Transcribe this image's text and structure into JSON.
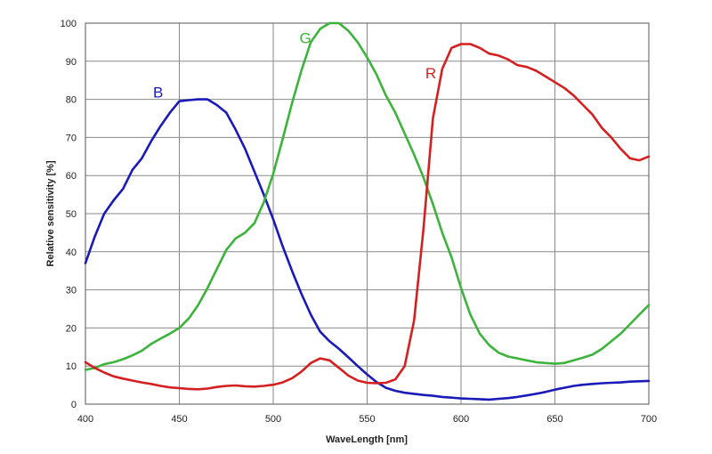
{
  "chart_data": {
    "type": "line",
    "xlabel": "WaveLength [nm]",
    "ylabel": "Relative sensitivity [%]",
    "xlim": [
      400,
      700
    ],
    "ylim": [
      0,
      100
    ],
    "x_ticks": [
      "400",
      "450",
      "500",
      "550",
      "600",
      "650",
      "700"
    ],
    "y_ticks": [
      "0",
      "10",
      "20",
      "30",
      "40",
      "50",
      "60",
      "70",
      "80",
      "90",
      "100"
    ],
    "grid": true,
    "legend": "none",
    "series": [
      {
        "name": "B",
        "color": "#1a1ab8",
        "x": [
          400,
          405,
          410,
          415,
          420,
          425,
          430,
          435,
          440,
          445,
          450,
          455,
          460,
          465,
          470,
          475,
          480,
          485,
          490,
          495,
          500,
          505,
          510,
          515,
          520,
          525,
          530,
          535,
          540,
          545,
          550,
          555,
          560,
          565,
          570,
          575,
          580,
          585,
          590,
          595,
          600,
          605,
          610,
          615,
          620,
          625,
          630,
          635,
          640,
          645,
          650,
          655,
          660,
          665,
          670,
          675,
          680,
          685,
          690,
          695,
          700
        ],
        "y": [
          37,
          44,
          50,
          53.5,
          56.5,
          61.5,
          64.5,
          69,
          73,
          76.5,
          79.5,
          79.8,
          80,
          80,
          78.5,
          76.5,
          72,
          67,
          61,
          55,
          48.5,
          41.5,
          35,
          29,
          23.5,
          19,
          16.5,
          14.5,
          12.3,
          10,
          7.8,
          5.8,
          4.3,
          3.5,
          3,
          2.7,
          2.4,
          2.2,
          1.9,
          1.7,
          1.5,
          1.4,
          1.3,
          1.2,
          1.4,
          1.6,
          1.9,
          2.3,
          2.7,
          3.2,
          3.8,
          4.3,
          4.8,
          5.1,
          5.3,
          5.5,
          5.6,
          5.7,
          5.9,
          6.0,
          6.1
        ]
      },
      {
        "name": "G",
        "color": "#3cb43c",
        "x": [
          400,
          405,
          410,
          415,
          420,
          425,
          430,
          435,
          440,
          445,
          450,
          455,
          460,
          465,
          470,
          475,
          480,
          485,
          490,
          495,
          500,
          505,
          510,
          515,
          520,
          525,
          530,
          535,
          540,
          545,
          550,
          555,
          560,
          565,
          570,
          575,
          580,
          585,
          590,
          595,
          600,
          605,
          610,
          615,
          620,
          625,
          630,
          635,
          640,
          645,
          650,
          655,
          660,
          665,
          670,
          675,
          680,
          685,
          690,
          695,
          700
        ],
        "y": [
          9,
          9.5,
          10.5,
          11,
          11.8,
          12.8,
          14,
          15.8,
          17.2,
          18.5,
          20,
          22.5,
          26,
          30.5,
          35.5,
          40.5,
          43.5,
          45,
          47.5,
          53,
          60.5,
          69.5,
          79,
          87.5,
          95,
          98.5,
          100,
          100,
          98,
          95,
          91,
          86.5,
          81,
          76.5,
          71,
          65.5,
          59.5,
          52.5,
          45,
          38.5,
          30.5,
          23.5,
          18.5,
          15.5,
          13.5,
          12.5,
          12,
          11.5,
          11,
          10.8,
          10.6,
          10.8,
          11.5,
          12.2,
          13,
          14.5,
          16.5,
          18.5,
          21,
          23.5,
          26
        ]
      },
      {
        "name": "R",
        "color": "#d42020",
        "x": [
          400,
          405,
          410,
          415,
          420,
          425,
          430,
          435,
          440,
          445,
          450,
          455,
          460,
          465,
          470,
          475,
          480,
          485,
          490,
          495,
          500,
          505,
          510,
          515,
          520,
          525,
          530,
          535,
          540,
          545,
          550,
          555,
          560,
          565,
          570,
          575,
          580,
          585,
          590,
          595,
          600,
          605,
          610,
          615,
          620,
          625,
          630,
          635,
          640,
          645,
          650,
          655,
          660,
          665,
          670,
          675,
          680,
          685,
          690,
          695,
          700
        ],
        "y": [
          11,
          9.5,
          8.3,
          7.3,
          6.7,
          6.2,
          5.7,
          5.3,
          4.8,
          4.4,
          4.2,
          4.0,
          3.9,
          4.1,
          4.5,
          4.8,
          4.9,
          4.7,
          4.6,
          4.8,
          5.1,
          5.7,
          6.8,
          8.5,
          10.8,
          12,
          11.5,
          9.5,
          7.5,
          6.2,
          5.6,
          5.5,
          5.6,
          6.5,
          10,
          22,
          46,
          75,
          88,
          93.5,
          94.5,
          94.5,
          93.5,
          92,
          91.5,
          90.5,
          89,
          88.5,
          87.5,
          86,
          84.5,
          83,
          81,
          78.5,
          76,
          72.5,
          70,
          67,
          64.5,
          64,
          65
        ]
      }
    ],
    "annotations": [
      {
        "text": "B",
        "x": 436,
        "y": 80.5,
        "color": "#1a1ab8"
      },
      {
        "text": "G",
        "x": 514,
        "y": 94.8,
        "color": "#3cb43c"
      },
      {
        "text": "R",
        "x": 581,
        "y": 85.5,
        "color": "#d42020"
      }
    ]
  }
}
